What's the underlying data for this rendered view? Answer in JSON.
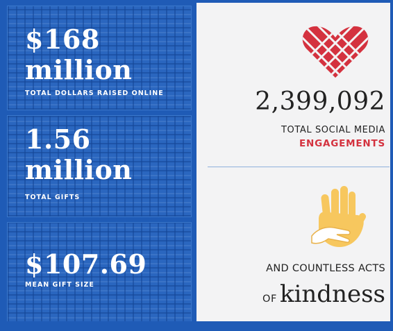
{
  "stats": [
    {
      "value_line1": "$168",
      "value_line2": "million",
      "label": "TOTAL DOLLARS RAISED ONLINE"
    },
    {
      "value_line1": "1.56",
      "value_line2": "million",
      "label": "TOTAL GIFTS"
    },
    {
      "value_line1": "$107.69",
      "label": "MEAN GIFT SIZE"
    }
  ],
  "engagements": {
    "number": "2,399,092",
    "label_line1": "TOTAL SOCIAL MEDIA",
    "label_line2": "ENGAGEMENTS"
  },
  "kindness": {
    "line1": "AND COUNTLESS ACTS",
    "prefix": "OF",
    "word": "kindness"
  },
  "icons": {
    "heart": "heart-icon",
    "hands": "helping-hand-icon"
  },
  "colors": {
    "brand_blue": "#1f5bb6",
    "accent_red": "#d4323f",
    "hand_yellow": "#f7c75e"
  }
}
